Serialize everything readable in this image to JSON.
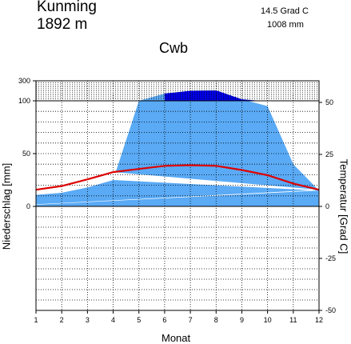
{
  "header": {
    "station": "Kunming",
    "elevation": "1892  m",
    "temperature_mean": "14.5 Grad C",
    "precipitation_total": "1008 mm",
    "climate_class": "Cwb"
  },
  "chart_data": {
    "type": "area",
    "title": "Cwb",
    "xlabel": "Monat",
    "ylabel_left": "Niederschlag [mm]",
    "ylabel_right": "Temperatur [Grad C]",
    "x": [
      1,
      2,
      3,
      4,
      5,
      6,
      7,
      8,
      9,
      10,
      11,
      12
    ],
    "x_ticks": [
      "1",
      "2",
      "3",
      "4",
      "5",
      "6",
      "7",
      "8",
      "9",
      "10",
      "11",
      "12"
    ],
    "precip_ticks": [
      "300",
      "100",
      "50",
      "0"
    ],
    "temp_ticks": [
      "50",
      "25",
      "0",
      "-25",
      "-50"
    ],
    "precip_ylim": [
      0,
      300
    ],
    "temp_ylim": [
      -50,
      50
    ],
    "grid": true,
    "series": [
      {
        "values": [
          11,
          13,
          18,
          25,
          100,
          172,
          200,
          204,
          115,
          95,
          40,
          15
        ],
        "color": "#5aaaf5",
        "excess_color": "#0000e6"
      },
      {
        "values": [
          8,
          9.8,
          13,
          16.5,
          18,
          19.5,
          19.8,
          19.5,
          17.5,
          15,
          11,
          8
        ],
        "color": "#dd0000"
      }
    ]
  }
}
